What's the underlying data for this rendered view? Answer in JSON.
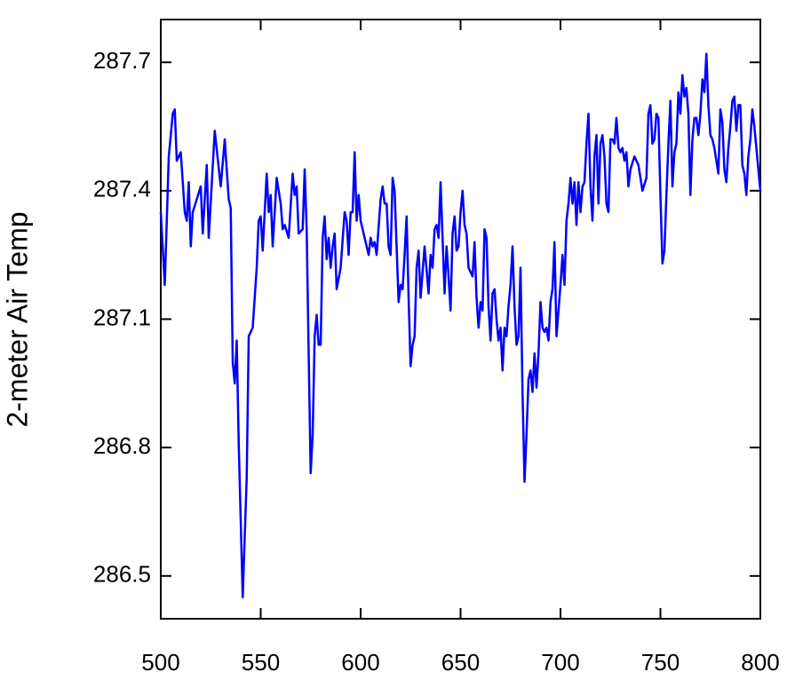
{
  "chart_data": {
    "type": "line",
    "ylabel": "2-meter Air Temp",
    "color": "#0000ff",
    "xlim": [
      500,
      800
    ],
    "xticks": [
      500,
      550,
      600,
      650,
      700,
      750,
      800
    ],
    "ylim": [
      286.4,
      287.8
    ],
    "yticks": [
      286.5,
      286.8,
      287.1,
      287.4,
      287.7
    ],
    "x": [
      500,
      502,
      504,
      506,
      507,
      508,
      510,
      512,
      513,
      514,
      515,
      516,
      518,
      520,
      521,
      523,
      524,
      527,
      530,
      532,
      534,
      535,
      536,
      537,
      538,
      539,
      541,
      543,
      544,
      546,
      548,
      549,
      550,
      551,
      553,
      554,
      555,
      556,
      558,
      560,
      561,
      562,
      564,
      566,
      567,
      568,
      569,
      571,
      572,
      573,
      574,
      575,
      576,
      577,
      578,
      579,
      580,
      581,
      582,
      583,
      584,
      585,
      586,
      587,
      588,
      590,
      592,
      593,
      594,
      595,
      596,
      597,
      598,
      599,
      600,
      602,
      604,
      605,
      606,
      607,
      608,
      610,
      611,
      612,
      613,
      614,
      615,
      616,
      617,
      618,
      619,
      620,
      621,
      622,
      623,
      624,
      625,
      626,
      627,
      628,
      629,
      630,
      632,
      634,
      635,
      636,
      637,
      638,
      639,
      640,
      641,
      642,
      643,
      644,
      645,
      646,
      647,
      648,
      649,
      650,
      651,
      652,
      653,
      654,
      656,
      657,
      658,
      659,
      660,
      661,
      662,
      663,
      664,
      665,
      666,
      667,
      668,
      669,
      670,
      671,
      672,
      673,
      674,
      675,
      676,
      677,
      678,
      679,
      680,
      681,
      682,
      683,
      684,
      685,
      686,
      687,
      688,
      689,
      690,
      691,
      692,
      693,
      694,
      695,
      696,
      697,
      698,
      699,
      700,
      701,
      702,
      703,
      704,
      705,
      706,
      707,
      708,
      709,
      710,
      711,
      712,
      713,
      714,
      715,
      716,
      717,
      718,
      719,
      720,
      721,
      722,
      723,
      724,
      725,
      726,
      727,
      728,
      729,
      730,
      731,
      732,
      733,
      734,
      735,
      737,
      739,
      741,
      743,
      744,
      745,
      746,
      747,
      748,
      749,
      750,
      751,
      752,
      753,
      754,
      755,
      756,
      757,
      758,
      759,
      760,
      761,
      762,
      763,
      764,
      765,
      766,
      767,
      768,
      769,
      770,
      771,
      772,
      773,
      774,
      775,
      776,
      777,
      778,
      779,
      780,
      781,
      782,
      783,
      784,
      785,
      786,
      787,
      788,
      789,
      790,
      791,
      792,
      793,
      794,
      795,
      796,
      797,
      798,
      799,
      800
    ],
    "values": [
      287.35,
      287.18,
      287.48,
      287.58,
      287.59,
      287.47,
      287.49,
      287.35,
      287.33,
      287.42,
      287.27,
      287.35,
      287.38,
      287.41,
      287.3,
      287.46,
      287.29,
      287.54,
      287.41,
      287.52,
      287.38,
      287.36,
      287.0,
      286.95,
      287.05,
      286.81,
      286.45,
      286.73,
      287.06,
      287.08,
      287.22,
      287.33,
      287.34,
      287.26,
      287.44,
      287.35,
      287.39,
      287.27,
      287.43,
      287.37,
      287.31,
      287.32,
      287.29,
      287.44,
      287.39,
      287.41,
      287.3,
      287.31,
      287.45,
      287.31,
      287.02,
      286.74,
      286.83,
      287.06,
      287.11,
      287.04,
      287.04,
      287.29,
      287.34,
      287.24,
      287.29,
      287.22,
      287.27,
      287.3,
      287.17,
      287.22,
      287.35,
      287.33,
      287.25,
      287.35,
      287.35,
      287.49,
      287.33,
      287.39,
      287.33,
      287.29,
      287.25,
      287.29,
      287.27,
      287.28,
      287.25,
      287.38,
      287.41,
      287.37,
      287.37,
      287.27,
      287.25,
      287.43,
      287.4,
      287.27,
      287.14,
      287.18,
      287.17,
      287.25,
      287.34,
      287.15,
      286.99,
      287.04,
      287.06,
      287.22,
      287.26,
      287.15,
      287.27,
      287.16,
      287.25,
      287.22,
      287.31,
      287.32,
      287.29,
      287.42,
      287.29,
      287.16,
      287.27,
      287.2,
      287.12,
      287.3,
      287.34,
      287.26,
      287.27,
      287.35,
      287.4,
      287.32,
      287.3,
      287.22,
      287.2,
      287.28,
      287.15,
      287.08,
      287.14,
      287.12,
      287.31,
      287.29,
      287.13,
      287.05,
      287.16,
      287.17,
      287.1,
      287.05,
      287.08,
      286.98,
      287.08,
      287.06,
      287.13,
      287.18,
      287.27,
      287.13,
      287.04,
      287.06,
      287.22,
      286.93,
      286.72,
      286.83,
      286.96,
      286.98,
      286.93,
      287.02,
      286.94,
      287.02,
      287.14,
      287.08,
      287.07,
      287.08,
      287.05,
      287.14,
      287.17,
      287.28,
      287.06,
      287.12,
      287.18,
      287.25,
      287.18,
      287.33,
      287.37,
      287.43,
      287.37,
      287.42,
      287.32,
      287.42,
      287.35,
      287.41,
      287.42,
      287.51,
      287.58,
      287.41,
      287.33,
      287.48,
      287.53,
      287.37,
      287.51,
      287.53,
      287.48,
      287.37,
      287.35,
      287.52,
      287.52,
      287.51,
      287.57,
      287.5,
      287.49,
      287.5,
      287.47,
      287.49,
      287.41,
      287.45,
      287.48,
      287.46,
      287.4,
      287.43,
      287.58,
      287.6,
      287.51,
      287.52,
      287.58,
      287.57,
      287.39,
      287.23,
      287.26,
      287.39,
      287.51,
      287.61,
      287.41,
      287.49,
      287.51,
      287.63,
      287.58,
      287.67,
      287.62,
      287.64,
      287.58,
      287.39,
      287.52,
      287.57,
      287.57,
      287.53,
      287.58,
      287.66,
      287.63,
      287.72,
      287.6,
      287.53,
      287.52,
      287.5,
      287.47,
      287.44,
      287.59,
      287.56,
      287.45,
      287.42,
      287.5,
      287.55,
      287.61,
      287.62,
      287.54,
      287.6,
      287.6,
      287.46,
      287.44,
      287.39,
      287.48,
      287.52,
      287.59,
      287.55,
      287.5,
      287.45,
      287.4
    ]
  }
}
